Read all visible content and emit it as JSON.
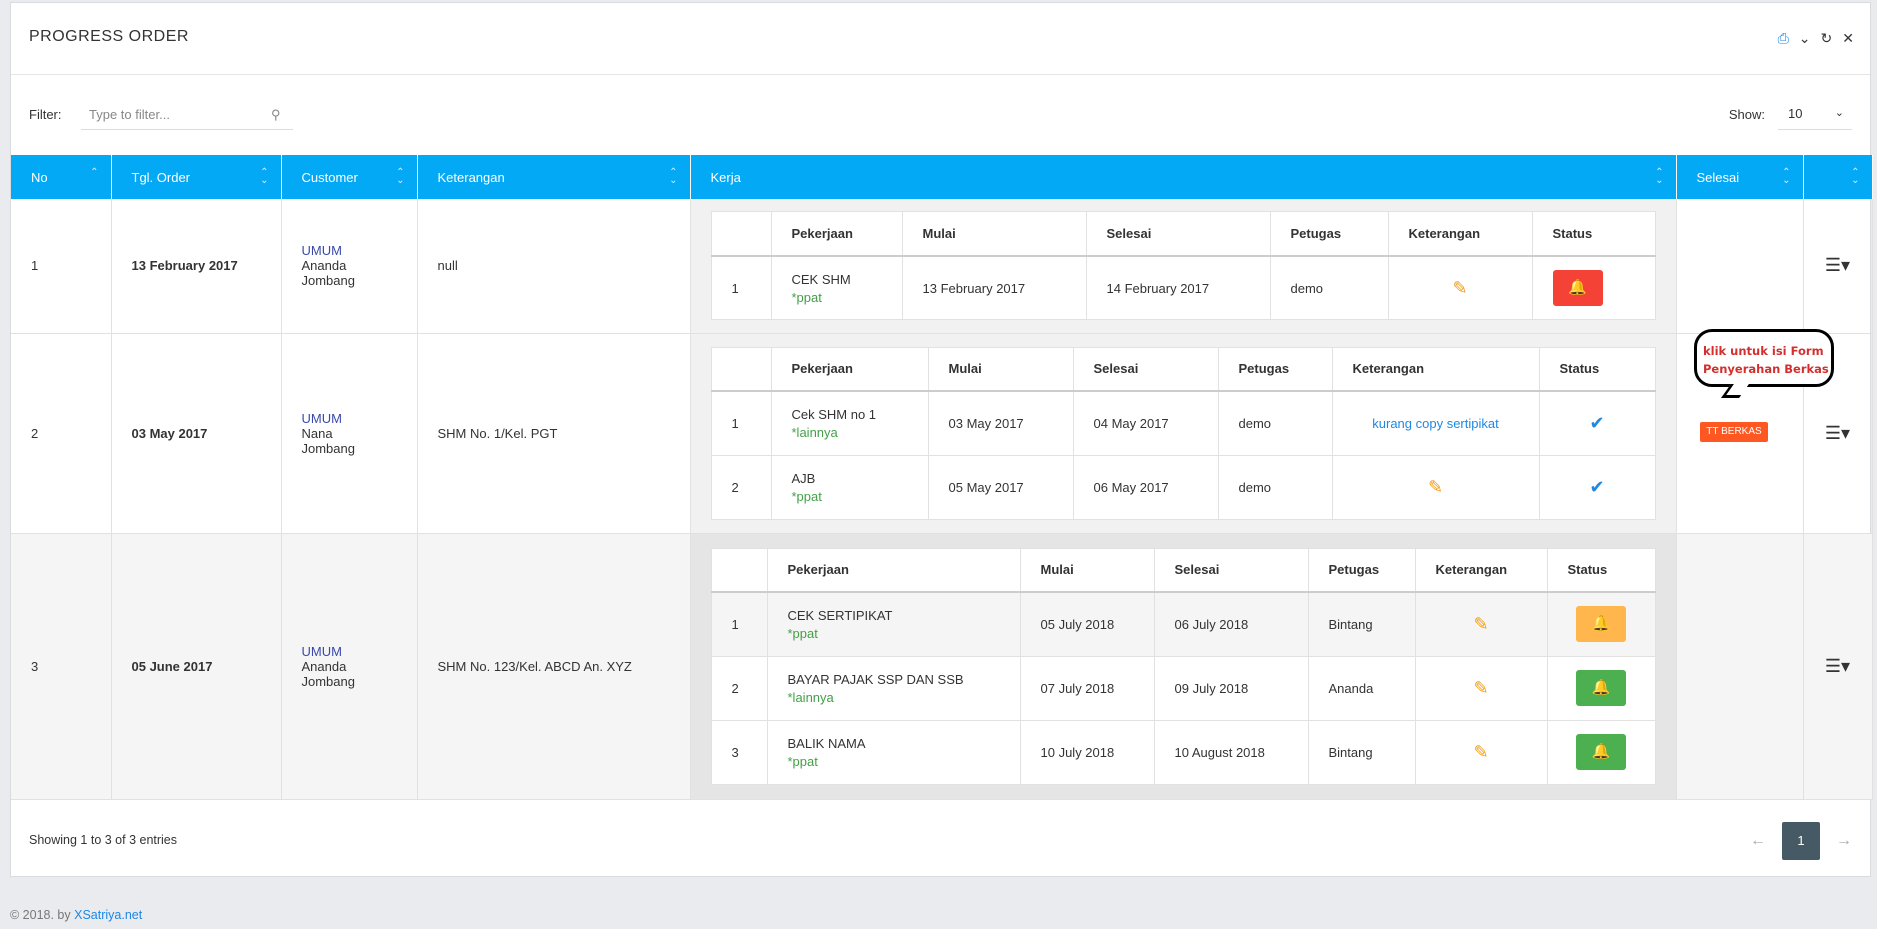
{
  "header": {
    "title": "PROGRESS ORDER",
    "tools": [
      "print-icon",
      "chevron-down-icon",
      "refresh-icon",
      "close-icon"
    ]
  },
  "filter": {
    "label": "Filter:",
    "placeholder": "Type to filter...",
    "show_label": "Show:",
    "show_value": "10"
  },
  "columns": [
    "No",
    "Tgl. Order",
    "Customer",
    "Keterangan",
    "Kerja",
    "Selesai",
    ""
  ],
  "sub_columns_a": [
    "",
    "Pekerjaan",
    "Mulai",
    "Selesai",
    "Petugas",
    "Keterangan",
    "Status"
  ],
  "rows": [
    {
      "no": "1",
      "tgl": "13 February 2017",
      "cust_type": "UMUM",
      "cust_name": "Ananda",
      "cust_city": "Jombang",
      "keterangan": "null",
      "kerja": [
        {
          "no": "1",
          "pekerjaan": "CEK SHM",
          "tag": "*ppat",
          "mulai": "13 February 2017",
          "selesai": "14 February 2017",
          "petugas": "demo",
          "ket": "edit",
          "status": "alarm-red"
        }
      ]
    },
    {
      "no": "2",
      "tgl": "03 May 2017",
      "cust_type": "UMUM",
      "cust_name": "Nana",
      "cust_city": "Jombang",
      "keterangan": "SHM No. 1/Kel. PGT",
      "kerja": [
        {
          "no": "1",
          "pekerjaan": "Cek SHM no 1",
          "tag": "*lainnya",
          "mulai": "03 May 2017",
          "selesai": "04 May 2017",
          "petugas": "demo",
          "ket": "kurang copy sertipikat",
          "status": "check"
        },
        {
          "no": "2",
          "pekerjaan": "AJB",
          "tag": "*ppat",
          "mulai": "05 May 2017",
          "selesai": "06 May 2017",
          "petugas": "demo",
          "ket": "edit",
          "status": "check"
        }
      ],
      "selesai_badge": "TT BERKAS"
    },
    {
      "no": "3",
      "tgl": "05 June 2017",
      "cust_type": "UMUM",
      "cust_name": "Ananda",
      "cust_city": "Jombang",
      "keterangan": "SHM No. 123/Kel. ABCD An. XYZ",
      "kerja": [
        {
          "no": "1",
          "pekerjaan": "CEK SERTIPIKAT",
          "tag": "*ppat",
          "mulai": "05 July 2018",
          "selesai": "06 July 2018",
          "petugas": "Bintang",
          "ket": "edit",
          "status": "alarm-amber"
        },
        {
          "no": "2",
          "pekerjaan": "BAYAR PAJAK SSP DAN SSB",
          "tag": "*lainnya",
          "mulai": "07 July 2018",
          "selesai": "09 July 2018",
          "petugas": "Ananda",
          "ket": "edit",
          "status": "alarm-green"
        },
        {
          "no": "3",
          "pekerjaan": "BALIK NAMA",
          "tag": "*ppat",
          "mulai": "10 July 2018",
          "selesai": "10 August 2018",
          "petugas": "Bintang",
          "ket": "edit",
          "status": "alarm-green"
        }
      ]
    }
  ],
  "callout": {
    "line1": "klik untuk isi Form",
    "line2": "Penyerahan Berkas"
  },
  "footer": {
    "info": "Showing 1 to 3 of 3 entries",
    "page": "1",
    "prev": "←",
    "next": "→"
  },
  "copyright": {
    "text": "© 2018. by ",
    "link": "XSatriya.net"
  },
  "colors": {
    "header_bg": "#03a9f4",
    "alarm_red": "#f44336",
    "alarm_amber": "#ffb74d",
    "alarm_green": "#4caf50",
    "badge": "#ff5722",
    "tag_green": "#43a047"
  }
}
